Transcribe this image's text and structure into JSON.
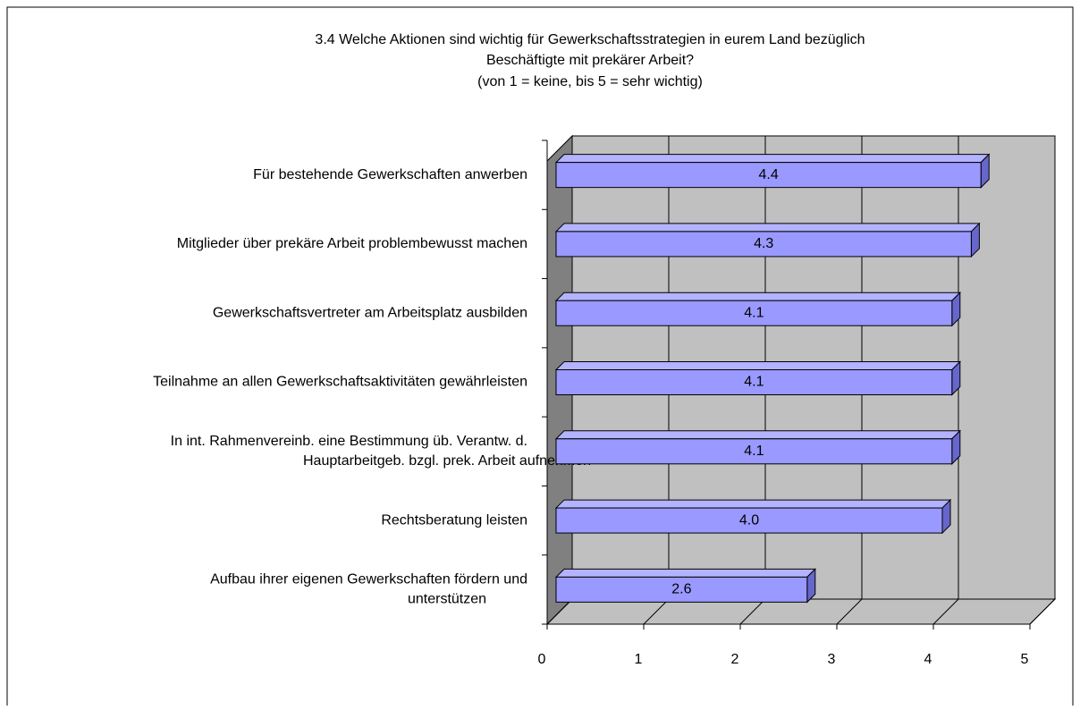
{
  "chart_data": {
    "type": "bar3d_horizontal",
    "title": "3.4 Welche Aktionen sind wichtig für Gewerkschaftsstrategien in eurem Land bezüglich Beschäftigte mit prekärer Arbeit?",
    "subtitle": "(von 1 = keine, bis 5 = sehr wichtig)",
    "categories": [
      "Für bestehende Gewerkschaften anwerben",
      "Mitglieder über prekäre Arbeit problembewusst machen",
      "Gewerkschaftsvertreter am Arbeitsplatz ausbilden",
      "Teilnahme an allen Gewerkschaftsaktivitäten gewährleisten",
      "In int. Rahmenvereinb. eine Bestimmung üb. Verantw. d.\nHauptarbeitgeb. bzgl. prek. Arbeit aufnehmen",
      "Rechtsberatung leisten",
      "Aufbau ihrer eigenen Gewerkschaften fördern und\nunterstützen"
    ],
    "values": [
      4.4,
      4.3,
      4.1,
      4.1,
      4.1,
      4.0,
      2.6
    ],
    "value_labels": [
      "4.4",
      "4.3",
      "4.1",
      "4.1",
      "4.1",
      "4.0",
      "2.6"
    ],
    "color": "#9999ff",
    "xlim": [
      0,
      5
    ],
    "xticks": [
      0,
      1,
      2,
      3,
      4,
      5
    ],
    "grid": true
  }
}
